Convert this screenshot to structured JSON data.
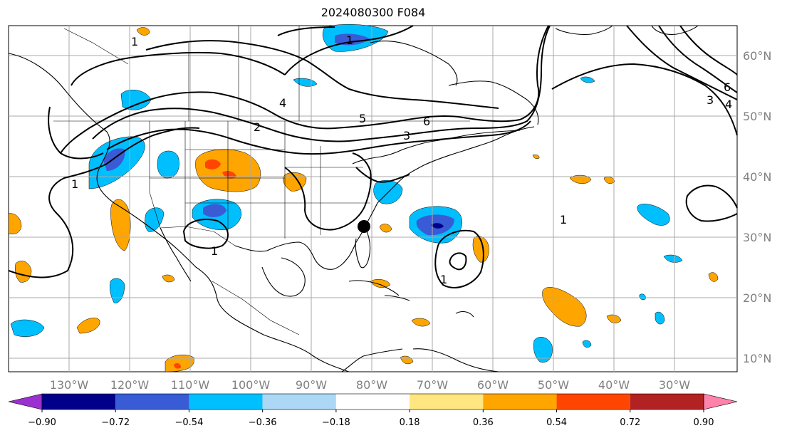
{
  "title": "2024080300 F084",
  "map": {
    "lon_ticks": [
      "130°W",
      "120°W",
      "110°W",
      "100°W",
      "90°W",
      "80°W",
      "70°W",
      "60°W",
      "50°W",
      "40°W",
      "30°W"
    ],
    "lat_ticks": [
      "60°N",
      "50°N",
      "40°N",
      "30°N",
      "20°N",
      "10°N"
    ],
    "contour_labels": [
      "1",
      "1",
      "1",
      "1",
      "2",
      "3",
      "3",
      "4",
      "4",
      "5",
      "6",
      "6",
      "1",
      "1"
    ],
    "marker": "storm-center-marker"
  },
  "colorbar": {
    "levels": [
      "−0.90",
      "−0.72",
      "−0.54",
      "−0.36",
      "−0.18",
      "0.18",
      "0.36",
      "0.54",
      "0.72",
      "0.90"
    ],
    "colors": [
      "#9b30d0",
      "#00008b",
      "#3a5bd6",
      "#00bfff",
      "#add8f5",
      "#ffffff",
      "#ffe680",
      "#ffa500",
      "#ff4500",
      "#b22222",
      "#ff82ab"
    ]
  }
}
